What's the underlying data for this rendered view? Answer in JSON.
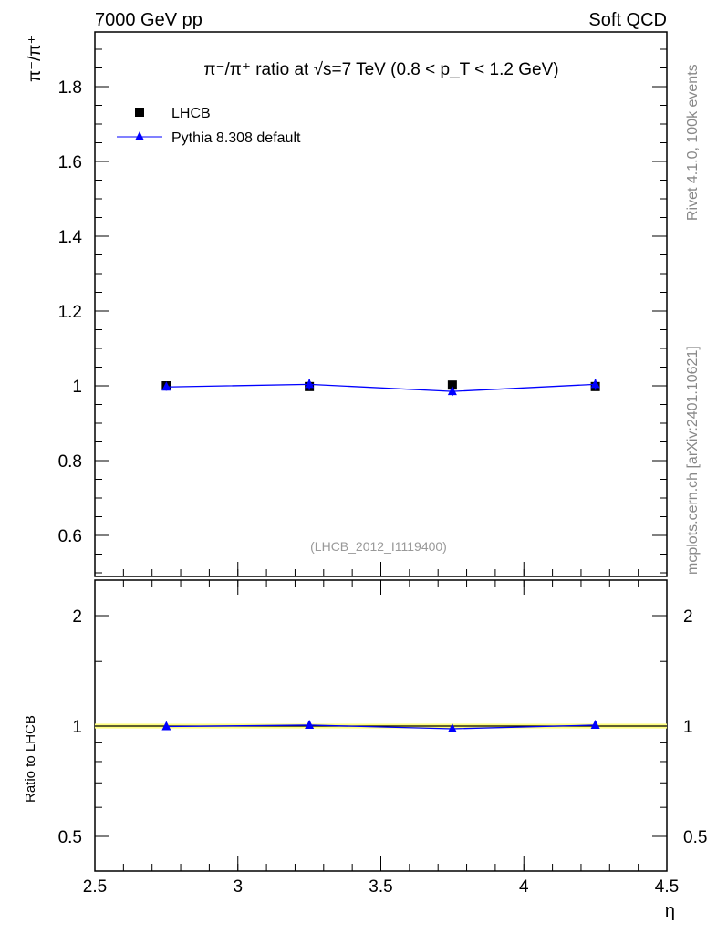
{
  "header": {
    "left": "7000 GeV pp",
    "right": "Soft QCD"
  },
  "side_texts": {
    "rivet": "Rivet 4.1.0,  100k events",
    "mcplots": "mcplots.cern.ch [arXiv:2401.10621]"
  },
  "chart_data": [
    {
      "type": "line",
      "title": "π⁻/π⁺ ratio at √s=7 TeV (0.8 < p_T < 1.2 GeV)",
      "ylabel": "π⁻/π⁺",
      "xlabel": "η",
      "analysis_id": "(LHCB_2012_I1119400)",
      "x": [
        2.75,
        3.25,
        3.75,
        4.25
      ],
      "xlim": [
        2.5,
        4.5
      ],
      "ylim": [
        0.49,
        1.95
      ],
      "yticks": [
        "0.6",
        "0.8",
        "1",
        "1.2",
        "1.4",
        "1.6",
        "1.8"
      ],
      "series": [
        {
          "name": "LHCB",
          "marker": "square",
          "color": "#000000",
          "values": [
            1.0,
            0.998,
            1.002,
            0.998
          ]
        },
        {
          "name": "Pythia 8.308 default",
          "marker": "triangle",
          "color": "#0000ff",
          "values": [
            0.997,
            1.004,
            0.985,
            1.004
          ],
          "errors": [
            0.01,
            0.015,
            0.012,
            0.015
          ]
        }
      ],
      "legend": "top-left"
    },
    {
      "type": "line",
      "ylabel": "Ratio to LHCB",
      "xlabel": "η",
      "yscale": "log",
      "ylim": [
        0.4,
        2.5
      ],
      "yticks": [
        "0.5",
        "1",
        "2"
      ],
      "xticks": [
        "2.5",
        "3",
        "3.5",
        "4",
        "4.5"
      ],
      "band_color": "#ffff80",
      "x": [
        2.75,
        3.25,
        3.75,
        4.25
      ],
      "series": [
        {
          "name": "Pythia 8.308 default",
          "color": "#0000ff",
          "values": [
            0.997,
            1.006,
            0.983,
            1.006
          ]
        }
      ]
    }
  ]
}
